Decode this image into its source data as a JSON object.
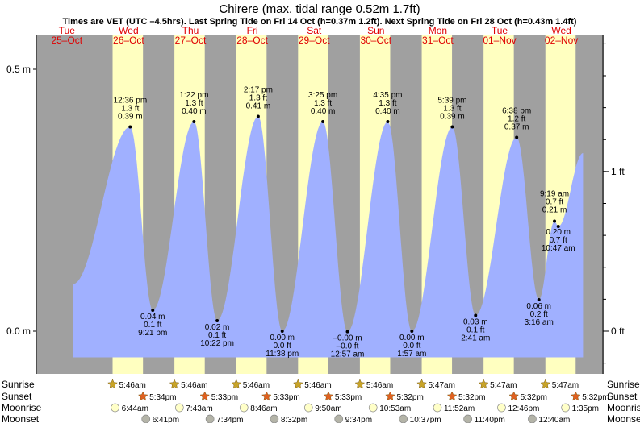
{
  "chart_data": {
    "type": "area",
    "title": "Chirere (max. tidal range 0.52m 1.7ft)",
    "subtitle": "Times are VET (UTC –4.5hrs). Last Spring Tide on Fri 14 Oct (h=0.37m 1.2ft). Next Spring Tide on Fri 28 Oct (h=0.43m 1.4ft)",
    "y_left_ticks": [
      {
        "value": 0.0,
        "label": "0.0 m"
      },
      {
        "value": 0.5,
        "label": "0.5 m"
      }
    ],
    "y_right_ticks": [
      {
        "value_ft": 0,
        "label": "0 ft"
      },
      {
        "value_ft": 1,
        "label": "1 ft"
      }
    ],
    "ylim_m": [
      -0.08,
      0.59
    ],
    "xlim_days_from_25oct_0000": [
      0.0,
      9.0
    ],
    "days": [
      {
        "dow": "Tue",
        "date": "25–Oct"
      },
      {
        "dow": "Wed",
        "date": "26–Oct"
      },
      {
        "dow": "Thu",
        "date": "27–Oct"
      },
      {
        "dow": "Fri",
        "date": "28–Oct"
      },
      {
        "dow": "Sat",
        "date": "29–Oct"
      },
      {
        "dow": "Sun",
        "date": "30–Oct"
      },
      {
        "dow": "Mon",
        "date": "31–Oct"
      },
      {
        "dow": "Tue",
        "date": "01–Nov"
      },
      {
        "dow": "Wed",
        "date": "02–Nov"
      }
    ],
    "tide_events": [
      {
        "type": "high",
        "day": 1,
        "time": "12:36 pm",
        "ft": "1.3 ft",
        "m": "0.39 m",
        "height": 0.39
      },
      {
        "type": "low",
        "day": 1,
        "time": "9:21 pm",
        "ft": "0.1 ft",
        "m": "0.04 m",
        "height": 0.04
      },
      {
        "type": "high",
        "day": 2,
        "time": "1:22 pm",
        "ft": "1.3 ft",
        "m": "0.40 m",
        "height": 0.4
      },
      {
        "type": "low",
        "day": 2,
        "time": "10:22 pm",
        "ft": "0.1 ft",
        "m": "0.02 m",
        "height": 0.02
      },
      {
        "type": "high",
        "day": 3,
        "time": "2:17 pm",
        "ft": "1.3 ft",
        "m": "0.41 m",
        "height": 0.41
      },
      {
        "type": "low",
        "day": 3,
        "time": "11:38 pm",
        "ft": "0.0 ft",
        "m": "0.00 m",
        "height": 0.0
      },
      {
        "type": "high",
        "day": 4,
        "time": "3:25 pm",
        "ft": "1.3 ft",
        "m": "0.40 m",
        "height": 0.4
      },
      {
        "type": "low",
        "day": 5,
        "time": "12:57 am",
        "ft": "–0.0 ft",
        "m": "–0.00 m",
        "height": -0.001
      },
      {
        "type": "high",
        "day": 5,
        "time": "4:35 pm",
        "ft": "1.3 ft",
        "m": "0.40 m",
        "height": 0.4
      },
      {
        "type": "low",
        "day": 6,
        "time": "1:57 am",
        "ft": "0.0 ft",
        "m": "0.00 m",
        "height": 0.0
      },
      {
        "type": "high",
        "day": 6,
        "time": "5:39 pm",
        "ft": "1.3 ft",
        "m": "0.39 m",
        "height": 0.39
      },
      {
        "type": "low",
        "day": 7,
        "time": "2:41 am",
        "ft": "0.1 ft",
        "m": "0.03 m",
        "height": 0.03
      },
      {
        "type": "high",
        "day": 7,
        "time": "6:38 pm",
        "ft": "1.2 ft",
        "m": "0.37 m",
        "height": 0.37
      },
      {
        "type": "low",
        "day": 8,
        "time": "3:16 am",
        "ft": "0.2 ft",
        "m": "0.06 m",
        "height": 0.06
      },
      {
        "type": "high",
        "day": 8,
        "time": "9:19 am",
        "ft": "0.7 ft",
        "m": "0.21 m",
        "height": 0.21
      },
      {
        "type": "low",
        "day": 8,
        "time": "10:47 am",
        "ft": "0.7 ft",
        "m": "0.20 m",
        "height": 0.2
      }
    ],
    "start_height_m": 0.09,
    "end_height_m": 0.34,
    "sunrise": [
      "5:46am",
      "5:46am",
      "5:46am",
      "5:46am",
      "5:46am",
      "5:47am",
      "5:47am",
      "5:47am"
    ],
    "sunset": [
      "5:34pm",
      "5:33pm",
      "5:33pm",
      "5:33pm",
      "5:32pm",
      "5:32pm",
      "5:32pm",
      "5:32pm"
    ],
    "moonrise": [
      "6:44am",
      "7:43am",
      "8:46am",
      "9:50am",
      "10:53am",
      "11:52am",
      "12:46pm",
      "1:35pm"
    ],
    "moonset": [
      "6:41pm",
      "7:34pm",
      "8:32pm",
      "9:34pm",
      "10:37pm",
      "11:40pm",
      "12:40am"
    ],
    "row_labels": {
      "sunrise": "Sunrise",
      "sunset": "Sunset",
      "moonrise": "Moonrise",
      "moonset": "Moonset"
    },
    "colors": {
      "water": "#a0b0ff",
      "day": "#ffffc0",
      "night": "#a0a0a0",
      "date_text": "#e00000",
      "axis": "#000000"
    }
  }
}
